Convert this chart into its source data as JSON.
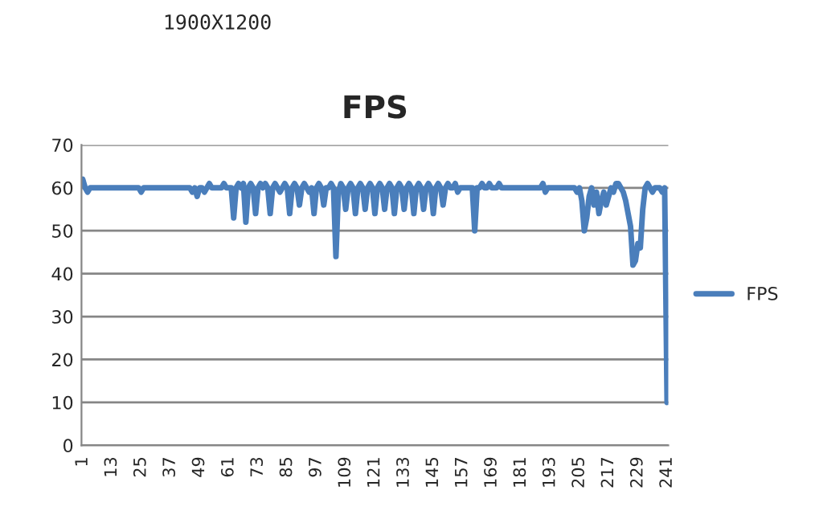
{
  "chart_data": {
    "type": "line",
    "title": "FPS",
    "annotations": [
      "1900X1200"
    ],
    "categories": [
      "1",
      null,
      null,
      null,
      null,
      null,
      null,
      null,
      null,
      null,
      null,
      null,
      "13",
      null,
      null,
      null,
      null,
      null,
      null,
      null,
      null,
      null,
      null,
      null,
      "25",
      null,
      null,
      null,
      null,
      null,
      null,
      null,
      null,
      null,
      null,
      null,
      "37",
      null,
      null,
      null,
      null,
      null,
      null,
      null,
      null,
      null,
      null,
      null,
      "49",
      null,
      null,
      null,
      null,
      null,
      null,
      null,
      null,
      null,
      null,
      null,
      "61",
      null,
      null,
      null,
      null,
      null,
      null,
      null,
      null,
      null,
      null,
      null,
      "73",
      null,
      null,
      null,
      null,
      null,
      null,
      null,
      null,
      null,
      null,
      null,
      "85",
      null,
      null,
      null,
      null,
      null,
      null,
      null,
      null,
      null,
      null,
      null,
      "97",
      null,
      null,
      null,
      null,
      null,
      null,
      null,
      null,
      null,
      null,
      null,
      "109",
      null,
      null,
      null,
      null,
      null,
      null,
      null,
      null,
      null,
      null,
      null,
      "121",
      null,
      null,
      null,
      null,
      null,
      null,
      null,
      null,
      null,
      null,
      null,
      "133",
      null,
      null,
      null,
      null,
      null,
      null,
      null,
      null,
      null,
      null,
      null,
      "145",
      null,
      null,
      null,
      null,
      null,
      null,
      null,
      null,
      null,
      null,
      null,
      "157",
      null,
      null,
      null,
      null,
      null,
      null,
      null,
      null,
      null,
      null,
      null,
      "169",
      null,
      null,
      null,
      null,
      null,
      null,
      null,
      null,
      null,
      null,
      null,
      "181",
      null,
      null,
      null,
      null,
      null,
      null,
      null,
      null,
      null,
      null,
      null,
      "193",
      null,
      null,
      null,
      null,
      null,
      null,
      null,
      null,
      null,
      null,
      null,
      "205",
      null,
      null,
      null,
      null,
      null,
      null,
      null,
      null,
      null,
      null,
      null,
      "217",
      null,
      null,
      null,
      null,
      null,
      null,
      null,
      null,
      null,
      null,
      null,
      "229",
      null,
      null,
      null,
      null,
      null,
      null,
      null,
      null,
      null,
      null,
      null,
      "241"
    ],
    "series": [
      {
        "name": "FPS",
        "color": "#4a7ebb",
        "values": [
          62,
          60,
          59,
          60,
          60,
          60,
          60,
          60,
          60,
          60,
          60,
          60,
          60,
          60,
          60,
          60,
          60,
          60,
          60,
          60,
          60,
          60,
          60,
          60,
          59,
          60,
          60,
          60,
          60,
          60,
          60,
          60,
          60,
          60,
          60,
          60,
          60,
          60,
          60,
          60,
          60,
          60,
          60,
          60,
          60,
          59,
          60,
          58,
          60,
          60,
          59,
          60,
          61,
          60,
          60,
          60,
          60,
          60,
          61,
          60,
          60,
          60,
          53,
          60,
          61,
          60,
          61,
          52,
          60,
          61,
          60,
          54,
          60,
          61,
          60,
          61,
          60,
          54,
          60,
          61,
          60,
          59,
          60,
          61,
          60,
          54,
          60,
          61,
          60,
          56,
          60,
          61,
          60,
          59,
          60,
          54,
          60,
          61,
          60,
          56,
          60,
          60,
          61,
          60,
          44,
          59,
          61,
          60,
          55,
          60,
          61,
          60,
          54,
          60,
          61,
          60,
          55,
          60,
          61,
          60,
          54,
          60,
          61,
          60,
          55,
          60,
          61,
          60,
          54,
          60,
          61,
          60,
          55,
          60,
          61,
          60,
          54,
          60,
          61,
          60,
          55,
          60,
          61,
          60,
          54,
          60,
          61,
          60,
          56,
          60,
          61,
          60,
          60,
          61,
          59,
          60,
          60,
          60,
          60,
          60,
          60,
          50,
          60,
          60,
          61,
          60,
          60,
          61,
          60,
          60,
          60,
          61,
          60,
          60,
          60,
          60,
          60,
          60,
          60,
          60,
          60,
          60,
          60,
          60,
          60,
          60,
          60,
          60,
          60,
          61,
          59,
          60,
          60,
          60,
          60,
          60,
          60,
          60,
          60,
          60,
          60,
          60,
          60,
          59,
          60,
          57,
          50,
          53,
          58,
          60,
          56,
          59,
          54,
          57,
          59,
          56,
          58,
          60,
          59,
          61,
          61,
          60,
          59,
          57,
          54,
          51,
          42,
          43,
          47,
          46,
          55,
          60,
          61,
          60,
          59,
          60,
          60,
          60,
          59,
          60,
          10
        ]
      }
    ],
    "ylim": [
      0,
      70
    ],
    "yticks": [
      0,
      10,
      20,
      30,
      40,
      50,
      60,
      70
    ],
    "grid": "y",
    "legend": "right",
    "marker": "none",
    "line_style": "solid"
  }
}
